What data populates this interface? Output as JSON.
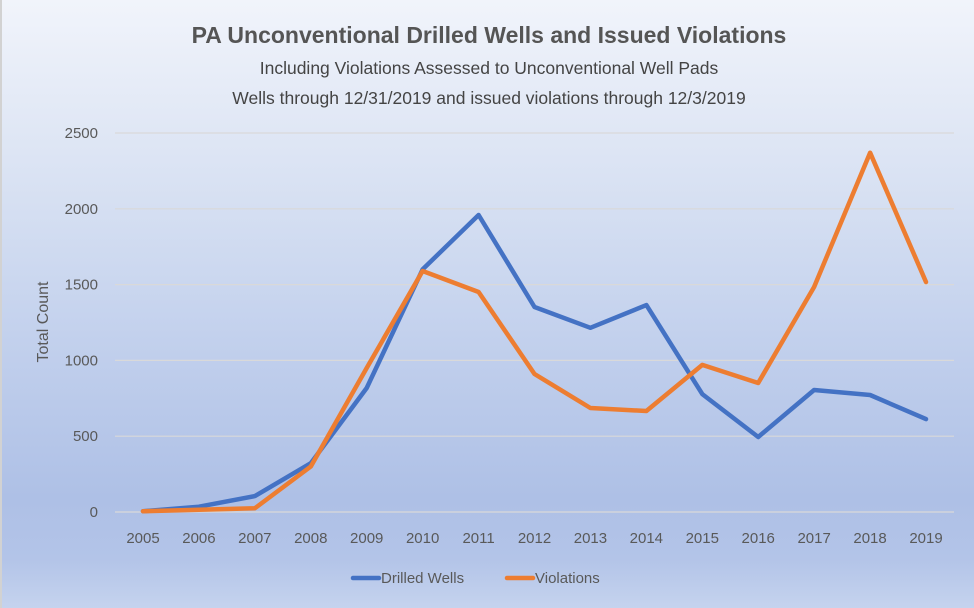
{
  "chart_data": {
    "type": "line",
    "title": "PA Unconventional Drilled Wells and Issued Violations",
    "subtitles": [
      "Including Violations Assessed to Unconventional Well Pads",
      "Wells through 12/31/2019 and issued violations through 12/3/2019"
    ],
    "xlabel": "",
    "ylabel": "Total Count",
    "x": [
      "2005",
      "2006",
      "2007",
      "2008",
      "2009",
      "2010",
      "2011",
      "2012",
      "2013",
      "2014",
      "2015",
      "2016",
      "2017",
      "2018",
      "2019"
    ],
    "ylim": [
      0,
      2500
    ],
    "yticks": [
      0,
      500,
      1000,
      1500,
      2000,
      2500
    ],
    "grid": true,
    "legend_position": "bottom",
    "series": [
      {
        "name": "Drilled Wells",
        "color": "#4472c4",
        "values": [
          5,
          35,
          105,
          322,
          818,
          1600,
          1959,
          1352,
          1215,
          1365,
          778,
          495,
          805,
          772,
          613
        ]
      },
      {
        "name": "Violations",
        "color": "#ed7d31",
        "values": [
          5,
          15,
          25,
          300,
          950,
          1590,
          1451,
          910,
          686,
          666,
          970,
          851,
          1484,
          2370,
          1517
        ]
      }
    ]
  }
}
